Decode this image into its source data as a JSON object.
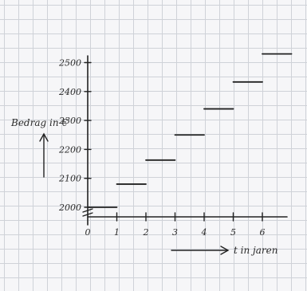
{
  "chart_data": {
    "type": "step",
    "title": "",
    "xlabel": "t in jaren",
    "ylabel": "Bedrag in €",
    "x_ticks": [
      "0",
      "1",
      "2",
      "3",
      "4",
      "5",
      "6"
    ],
    "y_ticks": [
      "2000",
      "2100",
      "2200",
      "2300",
      "2400",
      "2500"
    ],
    "xlim": [
      0,
      7
    ],
    "ylim": [
      2000,
      2500
    ],
    "grid": true,
    "series": [
      {
        "steps": [
          {
            "x_start": 0,
            "x_end": 1,
            "y": 2000
          },
          {
            "x_start": 1,
            "x_end": 2,
            "y": 2080
          },
          {
            "x_start": 2,
            "x_end": 3,
            "y": 2163
          },
          {
            "x_start": 3,
            "x_end": 4,
            "y": 2250
          },
          {
            "x_start": 4,
            "x_end": 5,
            "y": 2340
          },
          {
            "x_start": 5,
            "x_end": 6,
            "y": 2433
          },
          {
            "x_start": 6,
            "x_end": 7,
            "y": 2530
          }
        ]
      }
    ]
  }
}
